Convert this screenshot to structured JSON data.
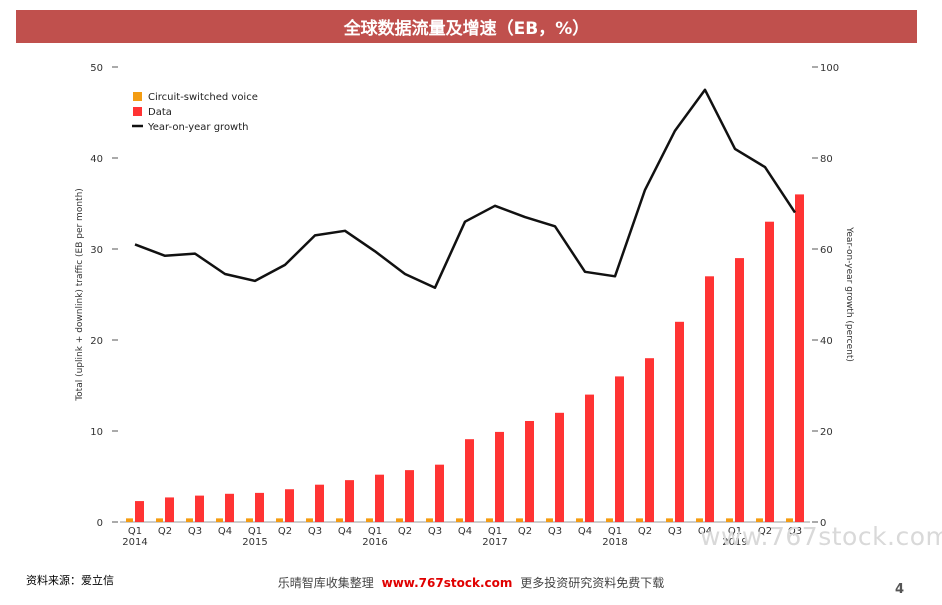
{
  "header": {
    "title": "全球数据流量及增速（EB，%）"
  },
  "source": "资料来源：爱立信",
  "watermark": "www.767stock.com",
  "footer": {
    "left": "乐晴智库收集整理",
    "site": "www.767stock.com",
    "right": "更多投资研究资料免费下载"
  },
  "page_number": "4",
  "colors": {
    "voice": "#f39c12",
    "data": "#ff3333",
    "growth": "#111111",
    "title_bar": "#c0504d"
  },
  "chart_data": {
    "type": "bar",
    "quarters": [
      "Q1",
      "Q2",
      "Q3",
      "Q4",
      "Q1",
      "Q2",
      "Q3",
      "Q4",
      "Q1",
      "Q2",
      "Q3",
      "Q4",
      "Q1",
      "Q2",
      "Q3",
      "Q4",
      "Q1",
      "Q2",
      "Q3",
      "Q4",
      "Q1",
      "Q2",
      "Q3"
    ],
    "years": [
      {
        "label": "2014",
        "index": 0
      },
      {
        "label": "2015",
        "index": 4
      },
      {
        "label": "2016",
        "index": 8
      },
      {
        "label": "2017",
        "index": 12
      },
      {
        "label": "2018",
        "index": 16
      },
      {
        "label": "2019",
        "index": 20
      }
    ],
    "series": [
      {
        "name": "Circuit-switched voice",
        "kind": "bar",
        "values": [
          0.4,
          0.4,
          0.4,
          0.4,
          0.4,
          0.4,
          0.4,
          0.4,
          0.4,
          0.4,
          0.4,
          0.4,
          0.4,
          0.4,
          0.4,
          0.4,
          0.4,
          0.4,
          0.4,
          0.4,
          0.4,
          0.4,
          0.4
        ]
      },
      {
        "name": "Data",
        "kind": "bar",
        "values": [
          2.3,
          2.7,
          2.9,
          3.1,
          3.2,
          3.6,
          4.1,
          4.6,
          5.2,
          5.7,
          6.3,
          9.1,
          9.9,
          11.1,
          12.0,
          14.0,
          16.0,
          18.0,
          22.0,
          27.0,
          29.0,
          33.0,
          36.0
        ]
      },
      {
        "name": "Year-on-year growth",
        "kind": "line",
        "axis": "right",
        "values": [
          61,
          58.5,
          59,
          54.5,
          53,
          56.5,
          63,
          64,
          59.5,
          54.5,
          51.5,
          66,
          69.5,
          67,
          65,
          55,
          54,
          73,
          86,
          95,
          82,
          78,
          68
        ]
      }
    ],
    "ylabel": "Total (uplink + downlink) traffic (EB per month)",
    "ylabel_right": "Year-on-year growth (percent)",
    "ylim": [
      0,
      50
    ],
    "yticks": [
      0,
      10,
      20,
      30,
      40,
      50
    ],
    "ylim_right": [
      0,
      100
    ],
    "yticks_right": [
      0,
      20,
      40,
      60,
      80,
      100
    ],
    "legend_position": "top-left",
    "grid": false
  }
}
